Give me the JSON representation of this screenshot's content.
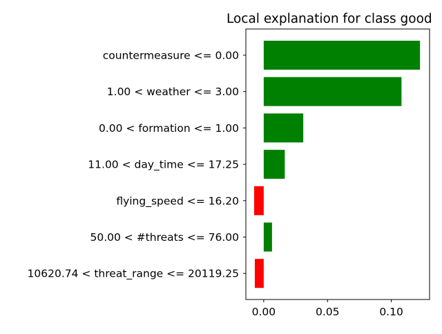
{
  "chart_data": {
    "type": "bar",
    "orientation": "horizontal",
    "title": "Local explanation for class good",
    "xlabel": "",
    "ylabel": "",
    "xlim": [
      -0.014,
      0.13
    ],
    "x_ticks": [
      0.0,
      0.05,
      0.1
    ],
    "x_tick_labels": [
      "0.00",
      "0.05",
      "0.10"
    ],
    "grid": false,
    "colors": {
      "positive": "#008000",
      "negative": "#ff0000"
    },
    "categories": [
      "countermeasure <= 0.00",
      "1.00 < weather <= 3.00",
      "0.00 < formation <= 1.00",
      "11.00 < day_time <= 17.25",
      "flying_speed <= 16.20",
      "50.00 < #threats <= 76.00",
      "10620.74 < threat_range <= 20119.25"
    ],
    "values": [
      0.1225,
      0.108,
      0.031,
      0.0165,
      -0.0075,
      0.0065,
      -0.007
    ]
  }
}
